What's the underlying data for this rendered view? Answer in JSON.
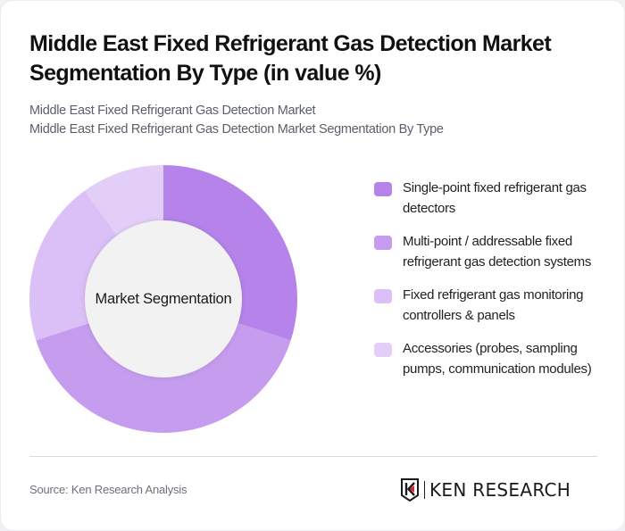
{
  "header": {
    "title": "Middle East Fixed Refrigerant Gas Detection Market Segmentation By Type (in value %)",
    "subtitle_line1": "Middle East Fixed Refrigerant Gas Detection Market",
    "subtitle_line2": "Middle East Fixed Refrigerant Gas Detection Market Segmentation By Type"
  },
  "donut": {
    "center_label": "Market Segmentation"
  },
  "legend": {
    "items": [
      {
        "label": "Single-point fixed refrigerant gas detectors",
        "color": "#B583EA"
      },
      {
        "label": "Multi-point / addressable fixed refrigerant gas detection systems",
        "color": "#C69CEE"
      },
      {
        "label": "Fixed refrigerant gas monitoring controllers & panels",
        "color": "#DAC0F6"
      },
      {
        "label": "Accessories (probes, sampling pumps, communication modules)",
        "color": "#E3CEF7"
      }
    ]
  },
  "footer": {
    "source": "Source: Ken Research Analysis",
    "logo_text": "KEN RESEARCH",
    "logo_icon": "ken-research-k-shield-icon"
  },
  "chart_data": {
    "type": "pie",
    "subtype": "donut",
    "title": "Middle East Fixed Refrigerant Gas Detection Market Segmentation By Type (in value %)",
    "center_label": "Market Segmentation",
    "categories": [
      "Single-point fixed refrigerant gas detectors",
      "Multi-point / addressable fixed refrigerant gas detection systems",
      "Fixed refrigerant gas monitoring controllers & panels",
      "Accessories (probes, sampling pumps, communication modules)"
    ],
    "values": [
      30,
      40,
      20,
      10
    ],
    "colors": [
      "#B583EA",
      "#C69CEE",
      "#DAC0F6",
      "#E3CEF7"
    ],
    "start_angle_deg": 0,
    "direction": "clockwise",
    "legend_position": "right",
    "unit": "%"
  }
}
